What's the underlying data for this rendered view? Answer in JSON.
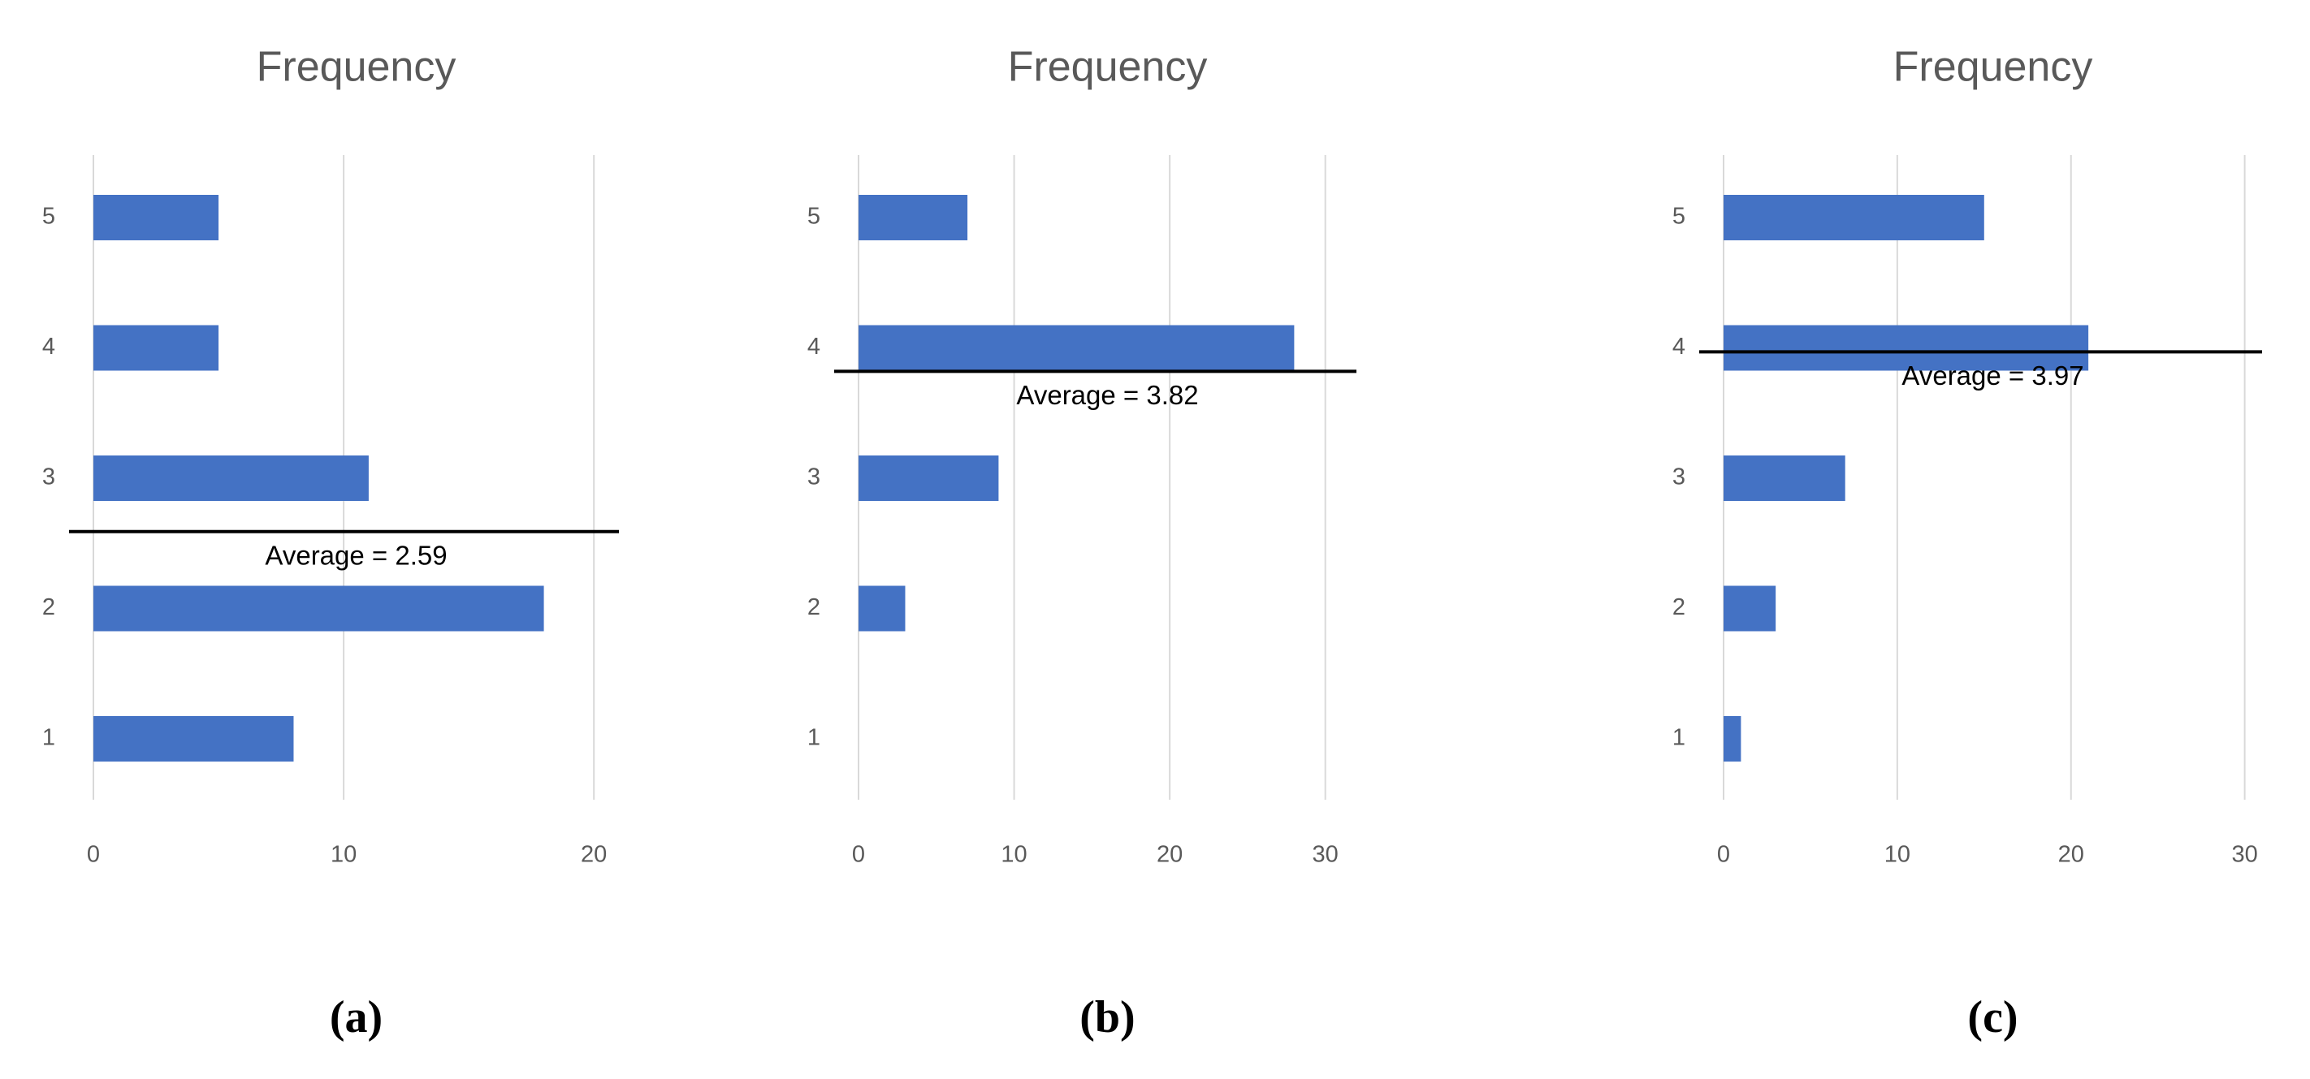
{
  "chart_data": [
    {
      "type": "bar",
      "orientation": "horizontal",
      "title": "Frequency",
      "categories": [
        "1",
        "2",
        "3",
        "4",
        "5"
      ],
      "values": [
        8,
        18,
        11,
        5,
        5
      ],
      "color": "#4472c4",
      "xlim": [
        0,
        21
      ],
      "xticks": [
        0,
        10,
        20
      ],
      "grid": true,
      "average": {
        "value": 2.59,
        "label": "Average = 2.59"
      },
      "panel_label": "(a)"
    },
    {
      "type": "bar",
      "orientation": "horizontal",
      "title": "Frequency",
      "categories": [
        "1",
        "2",
        "3",
        "4",
        "5"
      ],
      "values": [
        0,
        3,
        9,
        28,
        7
      ],
      "color": "#4472c4",
      "xlim": [
        0,
        32
      ],
      "xticks": [
        0,
        10,
        20,
        30
      ],
      "grid": true,
      "average": {
        "value": 3.82,
        "label": "Average = 3.82"
      },
      "panel_label": "(b)"
    },
    {
      "type": "bar",
      "orientation": "horizontal",
      "title": "Frequency",
      "categories": [
        "1",
        "2",
        "3",
        "4",
        "5"
      ],
      "values": [
        1,
        3,
        7,
        21,
        15
      ],
      "color": "#4472c4",
      "xlim": [
        0,
        31
      ],
      "xticks": [
        0,
        10,
        20,
        30
      ],
      "grid": true,
      "average": {
        "value": 3.97,
        "label": "Average = 3.97"
      },
      "panel_label": "(c)"
    }
  ]
}
